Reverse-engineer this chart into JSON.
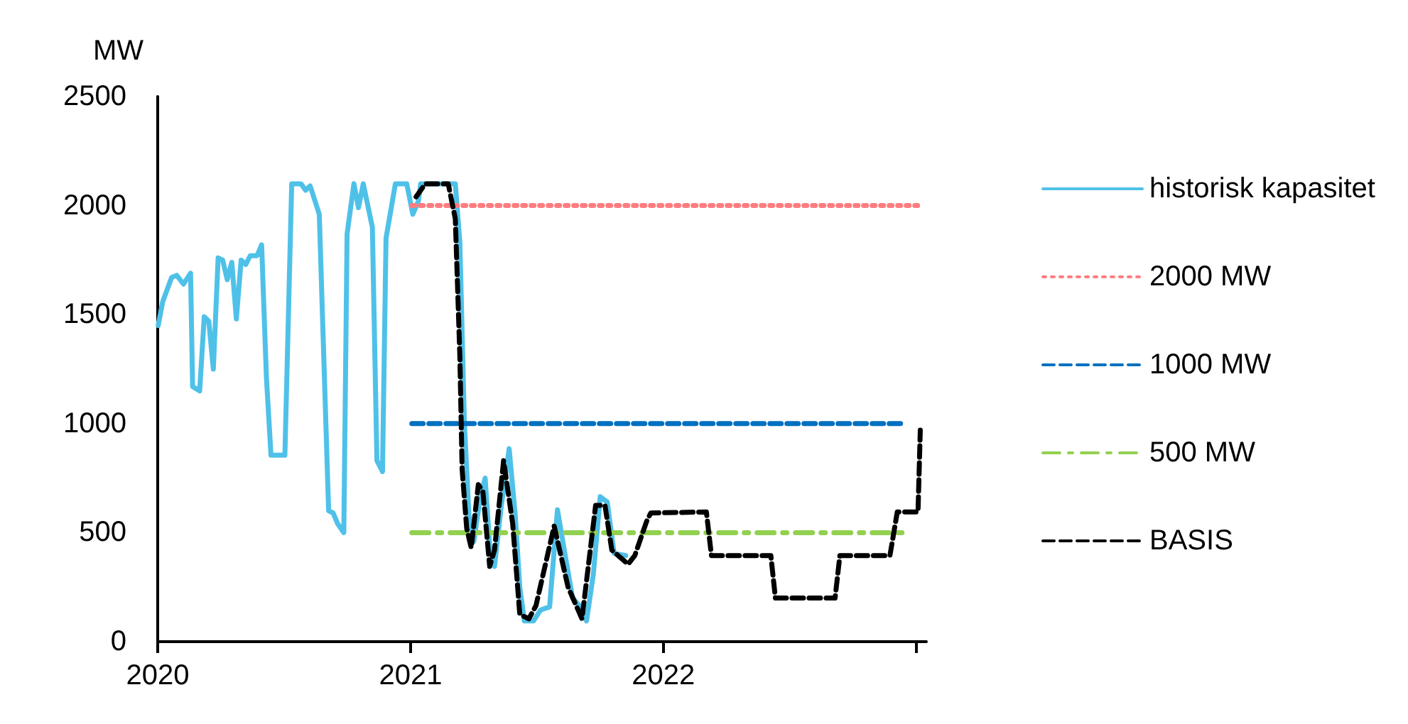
{
  "chart_data": {
    "type": "line",
    "ylabel": "MW",
    "xlim": [
      2020,
      2023.04
    ],
    "ylim": [
      0,
      2500
    ],
    "yticks": [
      0,
      500,
      1000,
      1500,
      2000,
      2500
    ],
    "xticks": [
      2020,
      2021,
      2022,
      {
        "value": 2023,
        "label": null
      }
    ],
    "grid": false,
    "legend": "right",
    "marker": "none",
    "series": [
      {
        "name": "historisk kapasitet",
        "color": "#4fc1e8",
        "line_style": "solid",
        "x": [
          2020.002,
          2020.02,
          2020.055,
          2020.075,
          2020.102,
          2020.13,
          2020.138,
          2020.166,
          2020.184,
          2020.202,
          2020.22,
          2020.239,
          2020.257,
          2020.275,
          2020.293,
          2020.311,
          2020.33,
          2020.348,
          2020.366,
          2020.393,
          2020.411,
          2020.43,
          2020.448,
          2020.503,
          2020.53,
          2020.567,
          2020.585,
          2020.603,
          2020.639,
          2020.676,
          2020.694,
          2020.712,
          2020.736,
          2020.749,
          2020.776,
          2020.794,
          2020.813,
          2020.849,
          2020.867,
          2020.889,
          2020.903,
          2020.94,
          2020.985,
          2021.009,
          2021.031,
          2021.04,
          2021.177,
          2021.195,
          2021.213,
          2021.231,
          2021.25,
          2021.277,
          2021.295,
          2021.313,
          2021.332,
          2021.359,
          2021.39,
          2021.414,
          2021.432,
          2021.45,
          2021.486,
          2021.514,
          2021.55,
          2021.581,
          2021.605,
          2021.641,
          2021.668,
          2021.696,
          2021.723,
          2021.75,
          2021.778,
          2021.805,
          2021.851
        ],
        "values": [
          1450,
          1560,
          1670,
          1680,
          1640,
          1690,
          1170,
          1150,
          1490,
          1470,
          1250,
          1760,
          1750,
          1660,
          1740,
          1480,
          1750,
          1730,
          1770,
          1770,
          1820,
          1210,
          855,
          855,
          2100,
          2100,
          2070,
          2090,
          1960,
          600,
          590,
          540,
          500,
          1870,
          2100,
          1990,
          2100,
          1900,
          830,
          780,
          1850,
          2100,
          2100,
          1960,
          2020,
          2100,
          2100,
          1830,
          1000,
          580,
          460,
          670,
          750,
          440,
          345,
          625,
          885,
          580,
          250,
          95,
          95,
          145,
          160,
          605,
          440,
          200,
          165,
          95,
          310,
          665,
          640,
          405,
          395
        ]
      },
      {
        "name": "2000 MW",
        "color": "#ff7c80",
        "line_style": "dotted",
        "x": [
          2021.005,
          2023.016
        ],
        "values": [
          2000,
          2000
        ]
      },
      {
        "name": "1000 MW",
        "color": "#0070c0",
        "line_style": "dashed",
        "x": [
          2021.005,
          2022.96
        ],
        "values": [
          1000,
          1000
        ]
      },
      {
        "name": "500 MW",
        "color": "#92d050",
        "line_style": "dashdot",
        "x": [
          2021.005,
          2022.96
        ],
        "values": [
          500,
          500
        ]
      },
      {
        "name": "BASIS",
        "color": "#000000",
        "line_style": "dashed",
        "x": [
          2021.022,
          2021.058,
          2021.149,
          2021.177,
          2021.195,
          2021.204,
          2021.222,
          2021.24,
          2021.268,
          2021.286,
          2021.313,
          2021.332,
          2021.368,
          2021.404,
          2021.432,
          2021.468,
          2021.496,
          2021.568,
          2021.623,
          2021.678,
          2021.732,
          2021.769,
          2021.796,
          2021.86,
          2021.887,
          2021.933,
          2021.95,
          2022.17,
          2022.19,
          2022.425,
          2022.443,
          2022.679,
          2022.698,
          2022.896,
          2022.925,
          2023.007,
          2023.016
        ],
        "values": [
          2040,
          2100,
          2100,
          1940,
          1310,
          790,
          520,
          430,
          720,
          690,
          345,
          420,
          830,
          540,
          125,
          105,
          165,
          530,
          250,
          105,
          625,
          625,
          420,
          355,
          395,
          550,
          590,
          595,
          395,
          395,
          200,
          200,
          395,
          395,
          595,
          595,
          970
        ]
      }
    ]
  }
}
